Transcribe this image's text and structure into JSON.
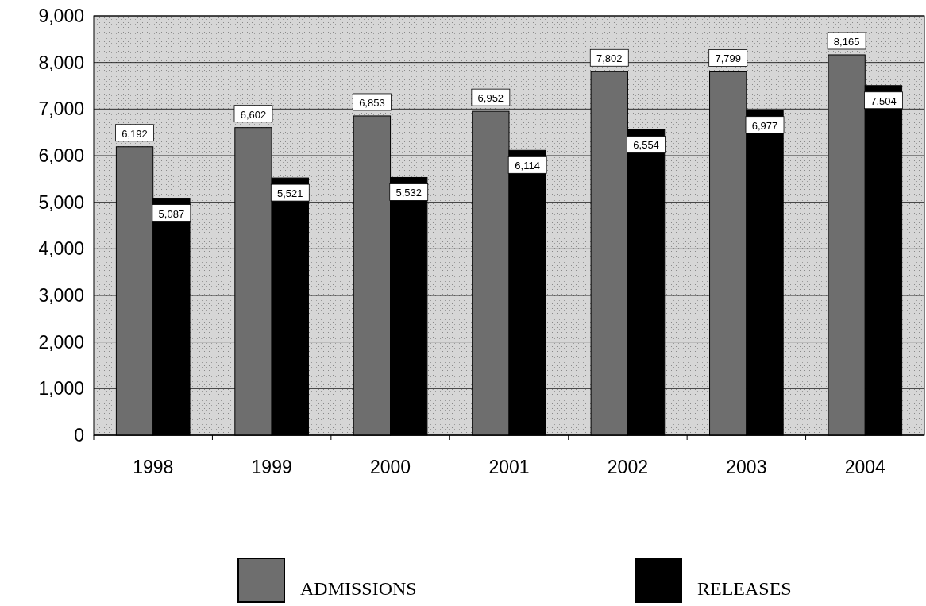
{
  "chart_data": {
    "type": "bar",
    "categories": [
      "1998",
      "1999",
      "2000",
      "2001",
      "2002",
      "2003",
      "2004"
    ],
    "series": [
      {
        "name": "ADMISSIONS",
        "color": "#6e6e6e",
        "values": [
          6192,
          6602,
          6853,
          6952,
          7802,
          7799,
          8165
        ],
        "value_labels": [
          "6,192",
          "6,602",
          "6,853",
          "6,952",
          "7,802",
          "7,799",
          "8,165"
        ]
      },
      {
        "name": "RELEASES",
        "color": "#000000",
        "values": [
          5087,
          5521,
          5532,
          6114,
          6554,
          6977,
          7504
        ],
        "value_labels": [
          "5,087",
          "5,521",
          "5,532",
          "6,114",
          "6,554",
          "6,977",
          "7,504"
        ]
      }
    ],
    "ylim": [
      0,
      9000
    ],
    "yticks": [
      {
        "value": 0,
        "label": "0"
      },
      {
        "value": 1000,
        "label": "1,000"
      },
      {
        "value": 2000,
        "label": "2,000"
      },
      {
        "value": 3000,
        "label": "3,000"
      },
      {
        "value": 4000,
        "label": "4,000"
      },
      {
        "value": 5000,
        "label": "5,000"
      },
      {
        "value": 6000,
        "label": "6,000"
      },
      {
        "value": 7000,
        "label": "7,000"
      },
      {
        "value": 8000,
        "label": "8,000"
      },
      {
        "value": 9000,
        "label": "9,000"
      }
    ],
    "grid": "y",
    "legend": "bottom"
  }
}
